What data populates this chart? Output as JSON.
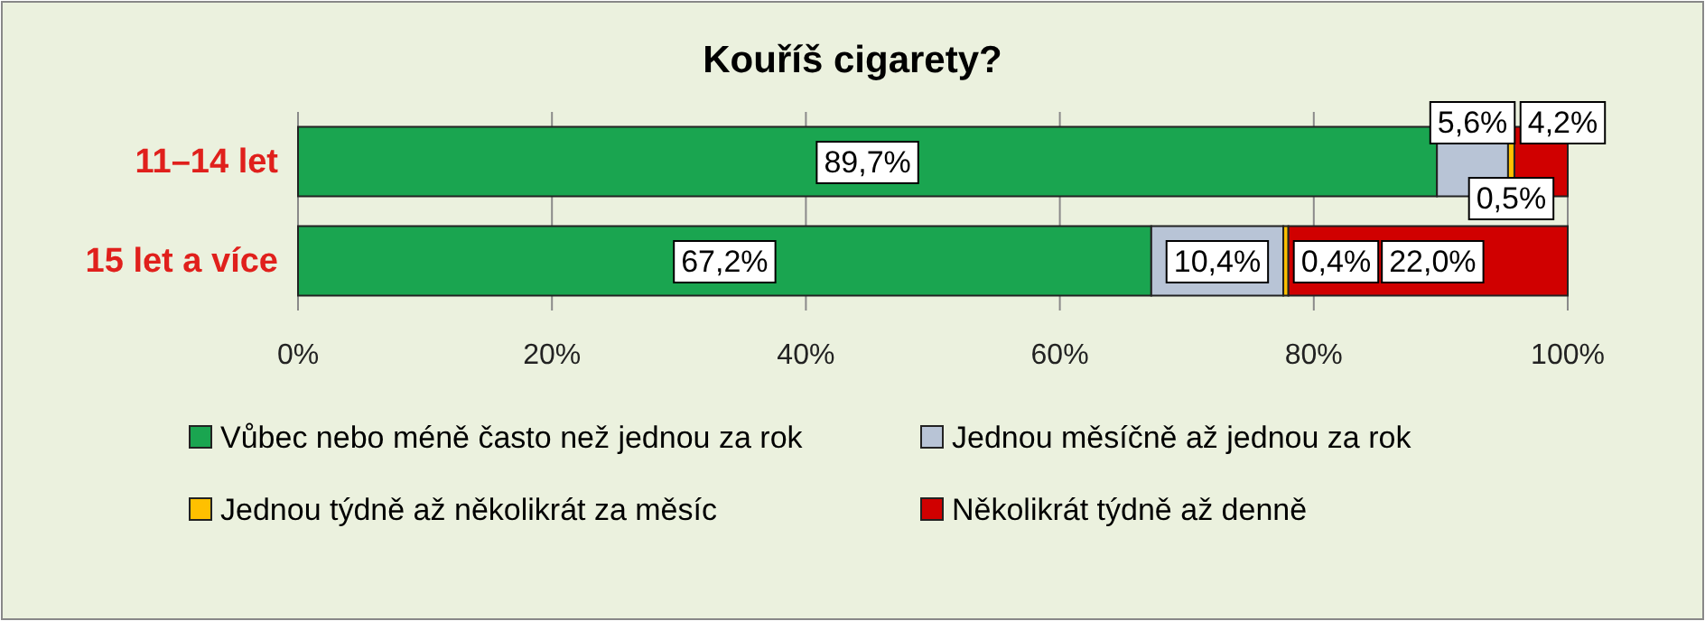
{
  "chart_data": {
    "type": "bar",
    "title": "Kouříš cigarety?",
    "orientation": "horizontal",
    "stacked": true,
    "categories": [
      "11–14 let",
      "15 let a více"
    ],
    "series": [
      {
        "name": "Vůbec nebo méně často než jednou za rok",
        "color": "#1aa550",
        "values": [
          89.7,
          67.2
        ],
        "value_labels": [
          "89,7%",
          "67,2%"
        ]
      },
      {
        "name": "Jednou měsíčně až jednou za rok",
        "color": "#b8c4d6",
        "values": [
          5.6,
          10.4
        ],
        "value_labels": [
          "5,6%",
          "10,4%"
        ]
      },
      {
        "name": "Jednou týdně až několikrát za měsíc",
        "color": "#ffc000",
        "values": [
          0.5,
          0.4
        ],
        "value_labels": [
          "0,5%",
          "0,4%"
        ]
      },
      {
        "name": "Několikrát týdně až denně",
        "color": "#d00000",
        "values": [
          4.2,
          22.0
        ],
        "value_labels": [
          "4,2%",
          "22,0%"
        ]
      }
    ],
    "xlim": [
      0,
      100
    ],
    "xticks": [
      {
        "value": 0,
        "label": "0%"
      },
      {
        "value": 20,
        "label": "20%"
      },
      {
        "value": 40,
        "label": "40%"
      },
      {
        "value": 60,
        "label": "60%"
      },
      {
        "value": 80,
        "label": "80%"
      },
      {
        "value": 100,
        "label": "100%"
      }
    ],
    "grid": "x",
    "legend": "bottom"
  }
}
